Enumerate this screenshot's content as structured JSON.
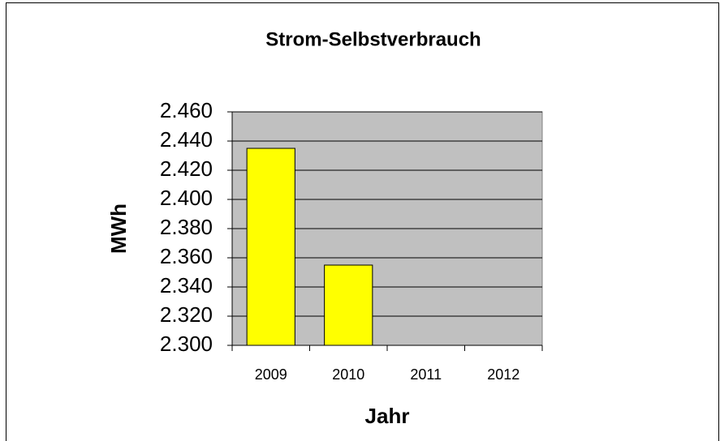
{
  "chart_data": {
    "type": "bar",
    "title": "Strom-Selbstverbrauch",
    "x_label": "Jahr",
    "y_label": "MWh",
    "categories": [
      "2009",
      "2010",
      "2011",
      "2012"
    ],
    "values": [
      2435,
      2355,
      null,
      null
    ],
    "color": "#ffff00",
    "ylim": [
      2300,
      2460
    ],
    "yticks": [
      {
        "value": 2300,
        "label": "2.300"
      },
      {
        "value": 2320,
        "label": "2.320"
      },
      {
        "value": 2340,
        "label": "2.340"
      },
      {
        "value": 2360,
        "label": "2.360"
      },
      {
        "value": 2380,
        "label": "2.380"
      },
      {
        "value": 2400,
        "label": "2.400"
      },
      {
        "value": 2420,
        "label": "2.420"
      },
      {
        "value": 2440,
        "label": "2.440"
      },
      {
        "value": 2460,
        "label": "2.460"
      }
    ],
    "grid": true
  }
}
